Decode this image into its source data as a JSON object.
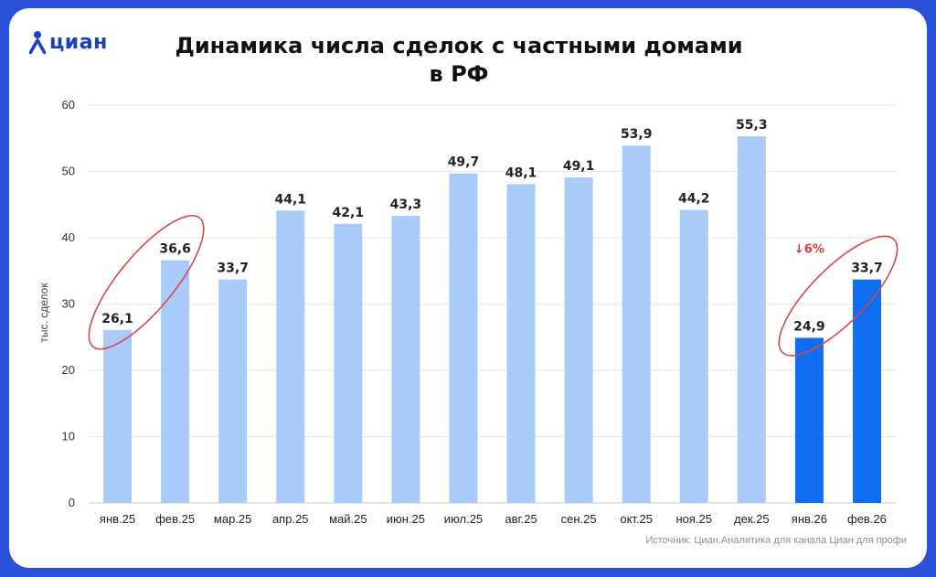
{
  "brand": {
    "name": "циан",
    "icon": "location-pin-icon",
    "color": "#1a3fbf"
  },
  "title_lines": [
    "Динамика числа сделок с частными домами",
    "в РФ"
  ],
  "source": "Источник: Циан.Аналитика для канала Циан для профи",
  "chart_data": {
    "type": "bar",
    "categories": [
      "янв.25",
      "фев.25",
      "мар.25",
      "апр.25",
      "май.25",
      "июн.25",
      "июл.25",
      "авг.25",
      "сен.25",
      "окт.25",
      "ноя.25",
      "дек.25",
      "янв.26",
      "фев.26"
    ],
    "values": [
      26.1,
      36.6,
      33.7,
      44.1,
      42.1,
      43.3,
      49.7,
      48.1,
      49.1,
      53.9,
      44.2,
      55.3,
      24.9,
      33.7
    ],
    "data_labels": [
      "26,1",
      "36,6",
      "33,7",
      "44,1",
      "42,1",
      "43,3",
      "49,7",
      "48,1",
      "49,1",
      "53,9",
      "44,2",
      "55,3",
      "24,9",
      "33,7"
    ],
    "highlight": [
      false,
      false,
      false,
      false,
      false,
      false,
      false,
      false,
      false,
      false,
      false,
      false,
      true,
      true
    ],
    "colors": {
      "normal": "#a9cbfa",
      "highlight": "#0f6ef0",
      "circle": "#d9474a",
      "note": "#e03434"
    },
    "ylabel": "тыс. сделок",
    "ylim": [
      0,
      60
    ],
    "yticks": [
      0,
      10,
      20,
      30,
      40,
      50,
      60
    ],
    "grid": true,
    "annotation": {
      "text": "↓6%",
      "category_index": 12
    },
    "circled_pairs": [
      [
        0,
        1
      ],
      [
        12,
        13
      ]
    ]
  }
}
